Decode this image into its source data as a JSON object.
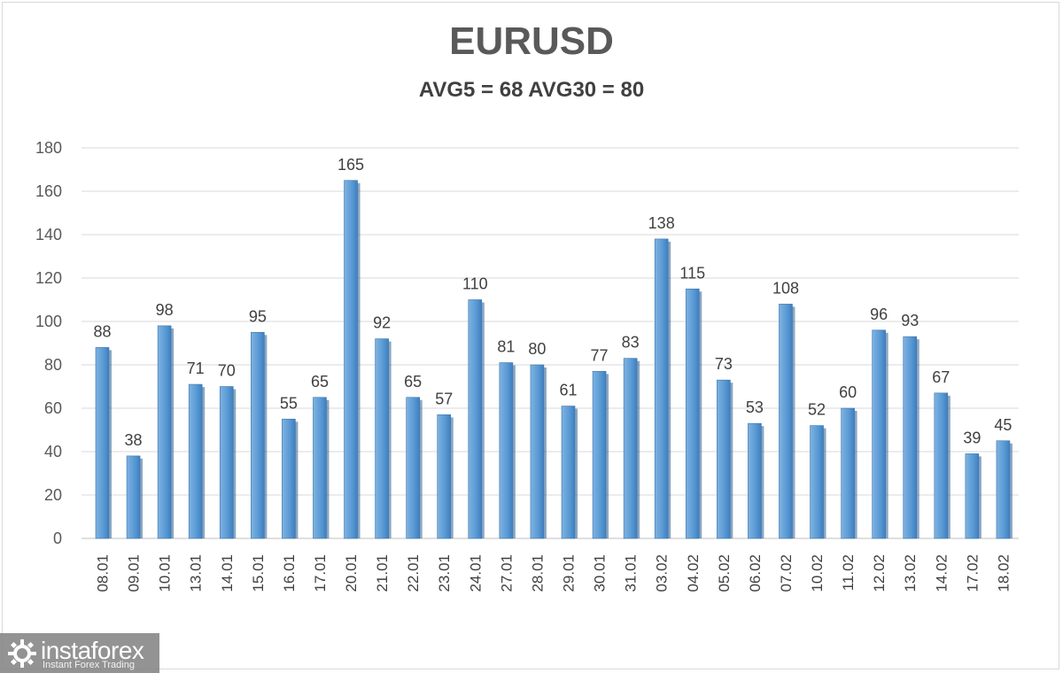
{
  "chart_data": {
    "type": "bar",
    "title": "EURUSD",
    "subtitle": "AVG5 = 68 AVG30 = 80",
    "categories": [
      "08.01",
      "09.01",
      "10.01",
      "13.01",
      "14.01",
      "15.01",
      "16.01",
      "17.01",
      "20.01",
      "21.01",
      "22.01",
      "23.01",
      "24.01",
      "27.01",
      "28.01",
      "29.01",
      "30.01",
      "31.01",
      "03.02",
      "04.02",
      "05.02",
      "06.02",
      "07.02",
      "10.02",
      "11.02",
      "12.02",
      "13.02",
      "14.02",
      "17.02",
      "18.02"
    ],
    "values": [
      88,
      38,
      98,
      71,
      70,
      95,
      55,
      65,
      165,
      92,
      65,
      57,
      110,
      81,
      80,
      61,
      77,
      83,
      138,
      115,
      73,
      53,
      108,
      52,
      60,
      96,
      93,
      67,
      39,
      45
    ],
    "ylim": [
      0,
      180
    ],
    "yticks": [
      0,
      20,
      40,
      60,
      80,
      100,
      120,
      140,
      160,
      180
    ],
    "grid": true,
    "data_labels": true,
    "bar_color": "#5b9bd5"
  },
  "watermark": {
    "brand": "instaforex",
    "tagline": "Instant Forex Trading"
  }
}
